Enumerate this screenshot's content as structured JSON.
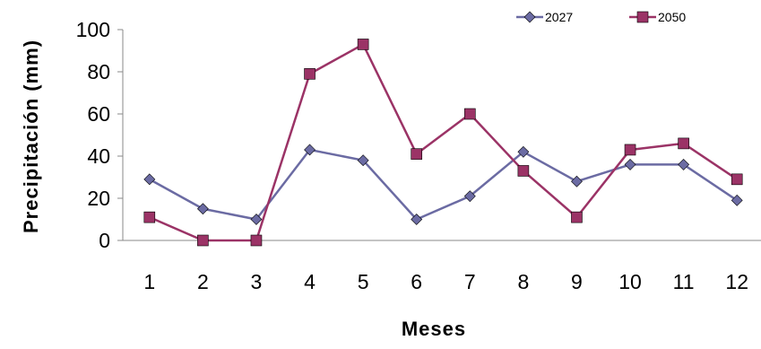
{
  "chart_data": {
    "type": "line",
    "title": "",
    "xlabel": "Meses",
    "ylabel": "Precipitación (mm)",
    "categories": [
      "1",
      "2",
      "3",
      "4",
      "5",
      "6",
      "7",
      "8",
      "9",
      "10",
      "11",
      "12"
    ],
    "ylim": [
      0,
      100
    ],
    "yticks": [
      "0",
      "20",
      "40",
      "60",
      "80",
      "100"
    ],
    "grid": false,
    "legend_position": "top-right",
    "series": [
      {
        "name": "2027",
        "color": "#6B6BA3",
        "marker": "diamond",
        "values": [
          29,
          15,
          10,
          43,
          38,
          10,
          21,
          42,
          28,
          36,
          36,
          19
        ]
      },
      {
        "name": "2050",
        "color": "#9B3366",
        "marker": "square",
        "values": [
          11,
          0,
          0,
          79,
          93,
          41,
          60,
          33,
          11,
          43,
          46,
          29
        ]
      }
    ]
  }
}
